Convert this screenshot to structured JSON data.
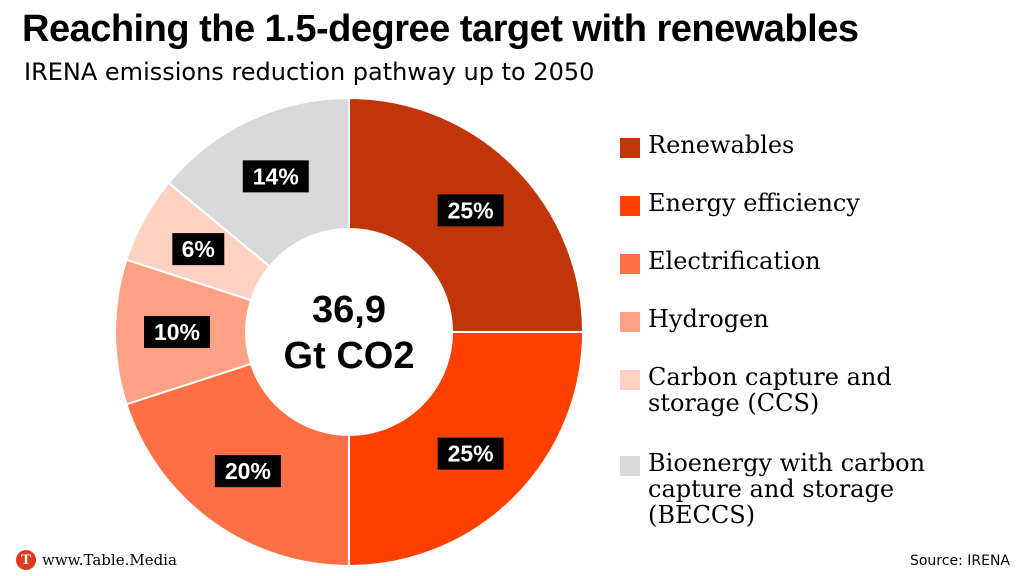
{
  "header": {
    "title": "Reaching the 1.5-degree target with renewables",
    "subtitle": "IRENA emissions reduction pathway up to 2050"
  },
  "chart_data": {
    "type": "pie",
    "style": "donut",
    "center_label": [
      "36,9",
      "Gt CO2"
    ],
    "legend_placement": "right",
    "slices": [
      {
        "label": "Renewables",
        "value": 25,
        "display": "25%",
        "color": "#c0350a"
      },
      {
        "label": "Energy efficiency",
        "value": 25,
        "display": "25%",
        "color": "#ff4000"
      },
      {
        "label": "Electrification",
        "value": 20,
        "display": "20%",
        "color": "#ff6f45"
      },
      {
        "label": "Hydrogen",
        "value": 10,
        "display": "10%",
        "color": "#ffa184"
      },
      {
        "label": "Carbon capture and storage (CCS)",
        "value": 6,
        "display": "6%",
        "color": "#ffd1c2"
      },
      {
        "label": "Bioenergy with carbon capture and storage (BECCS)",
        "value": 14,
        "display": "14%",
        "color": "#d9d9d9"
      }
    ]
  },
  "footer": {
    "brand": "www.Table.Media",
    "logo_letter": "T",
    "source": "Source: IRENA"
  }
}
